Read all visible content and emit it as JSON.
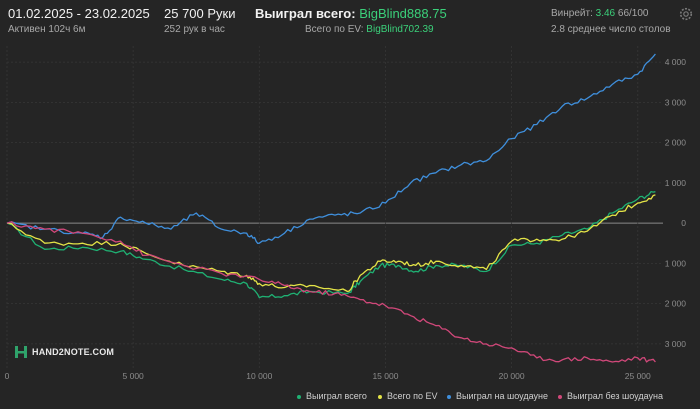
{
  "header": {
    "date_range": "01.02.2025 - 23.02.2025",
    "active": "Активен 102ч 6м",
    "hands": "25 700 Руки",
    "hands_per_hour": "252 рук в час",
    "won_label": "Выиграл всего:",
    "won_value": "BigBlind888.75",
    "ev_label": "Всего по EV:",
    "ev_value": "BigBlind702.39",
    "winrate_label": "Винрейт:",
    "winrate_value": "3.46",
    "winrate_rest": "66/100",
    "tables": "2.8 среднее число столов"
  },
  "logo": {
    "text": "HAND2NOTE.COM"
  },
  "icons": {
    "settings": "gear-icon",
    "logo": "hand2note-logo-icon"
  },
  "colors": {
    "background": "#252525",
    "won": "#1fb173",
    "ev": "#e4e447",
    "showdown": "#3f8fdc",
    "no_showdown": "#d1487a",
    "accent_green": "#3bd07a"
  },
  "chart_data": {
    "type": "line",
    "x_ticks": [
      "0",
      "5 000",
      "10 000",
      "15 000",
      "20 000",
      "25 000"
    ],
    "y_ticks": [
      "4 000",
      "3 000",
      "2 000",
      "1 000",
      "0",
      "-1 000",
      "-2 000",
      "-3 000"
    ],
    "xlim": [
      0,
      26000
    ],
    "ylim": [
      -3600,
      4400
    ],
    "grid": true,
    "legend_position": "bottom-right",
    "series": [
      {
        "name": "Выиграл всего",
        "color": "#1fb173",
        "x": [
          0,
          1500,
          3000,
          4500,
          5500,
          7000,
          8500,
          9500,
          10000,
          11000,
          12000,
          13500,
          14000,
          14800,
          15500,
          16200,
          17000,
          18000,
          19000,
          20000,
          21000,
          22000,
          23000,
          24000,
          25000,
          25700
        ],
        "y": [
          0,
          -650,
          -600,
          -700,
          -900,
          -1150,
          -1400,
          -1500,
          -1850,
          -1800,
          -1700,
          -1750,
          -1450,
          -1050,
          -1050,
          -1200,
          -1050,
          -1050,
          -1200,
          -550,
          -500,
          -300,
          -150,
          250,
          600,
          780
        ]
      },
      {
        "name": "Всего по EV",
        "color": "#e4e447",
        "x": [
          0,
          1500,
          3000,
          4500,
          5500,
          7000,
          8500,
          9500,
          10000,
          11000,
          12000,
          13500,
          14000,
          14800,
          15500,
          16200,
          17000,
          18000,
          19000,
          20000,
          21000,
          22000,
          23000,
          24000,
          25000,
          25700
        ],
        "y": [
          0,
          -500,
          -500,
          -500,
          -750,
          -1050,
          -1200,
          -1300,
          -1500,
          -1600,
          -1550,
          -1700,
          -1300,
          -950,
          -950,
          -1050,
          -950,
          -1050,
          -1150,
          -450,
          -400,
          -400,
          -200,
          200,
          500,
          700
        ]
      },
      {
        "name": "Выиграл на шоудауне",
        "color": "#3f8fdc",
        "x": [
          0,
          1500,
          3000,
          3800,
          4500,
          5500,
          6500,
          7500,
          8500,
          9500,
          10000,
          11000,
          12000,
          13000,
          14000,
          15000,
          16000,
          17000,
          18000,
          19000,
          20000,
          21000,
          22000,
          23000,
          24000,
          25000,
          25700
        ],
        "y": [
          0,
          -150,
          -250,
          -350,
          150,
          0,
          -150,
          250,
          -150,
          -250,
          -500,
          -250,
          100,
          200,
          250,
          500,
          1000,
          1250,
          1450,
          1550,
          2100,
          2450,
          2900,
          3100,
          3450,
          3700,
          4200
        ]
      },
      {
        "name": "Выиграл без шоудауна",
        "color": "#d1487a",
        "x": [
          0,
          1500,
          3000,
          4500,
          5500,
          7000,
          8500,
          10000,
          11000,
          12000,
          13000,
          14000,
          15000,
          16000,
          17000,
          18000,
          19000,
          20000,
          21000,
          22000,
          23000,
          24000,
          25000,
          25700
        ],
        "y": [
          0,
          -150,
          -250,
          -450,
          -800,
          -1050,
          -1250,
          -1400,
          -1550,
          -1700,
          -1750,
          -1900,
          -2050,
          -2300,
          -2550,
          -2850,
          -3000,
          -3100,
          -3350,
          -3400,
          -3350,
          -3450,
          -3350,
          -3450
        ]
      }
    ]
  }
}
